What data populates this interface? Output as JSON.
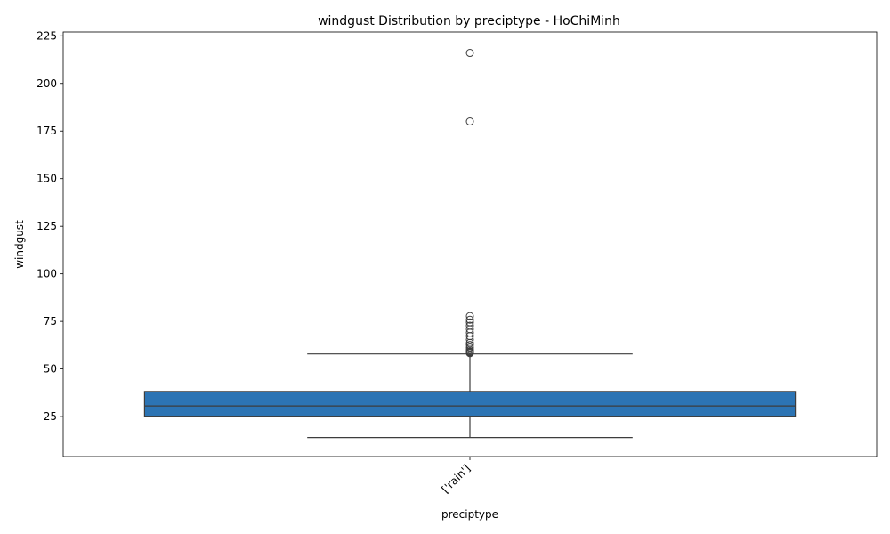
{
  "chart_data": {
    "type": "box",
    "title": "windgust Distribution by preciptype - HoChiMinh",
    "xlabel": "preciptype",
    "ylabel": "windgust",
    "categories": [
      "['rain']"
    ],
    "ylim": [
      4,
      227
    ],
    "yticks": [
      25,
      50,
      75,
      100,
      125,
      150,
      175,
      200,
      225
    ],
    "grid": false,
    "box_color": "#2c74b4",
    "boxes": [
      {
        "category": "['rain']",
        "whisker_low": 14.0,
        "q1": 25.2,
        "median": 30.6,
        "q3": 38.2,
        "whisker_high": 57.9,
        "outliers": [
          58.3,
          58.7,
          59.0,
          59.4,
          60.1,
          61.2,
          62.6,
          63.7,
          65.5,
          67.3,
          69.1,
          70.9,
          72.7,
          74.5,
          75.9,
          77.8,
          180.0,
          216.0
        ]
      }
    ]
  }
}
